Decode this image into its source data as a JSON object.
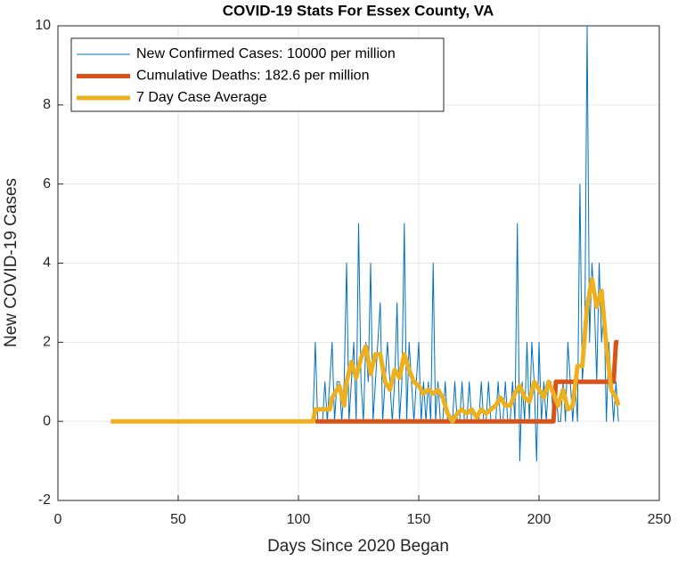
{
  "chart_data": {
    "type": "line",
    "title": "COVID-19 Stats For Essex County, VA",
    "xlabel": "Days Since 2020 Began",
    "ylabel": "New COVID-19 Cases",
    "xlim": [
      0,
      250
    ],
    "xticks": [
      0,
      50,
      100,
      150,
      200,
      250
    ],
    "ylim": [
      -2,
      10
    ],
    "yticks": [
      -2,
      0,
      2,
      4,
      6,
      8,
      10
    ],
    "grid": true,
    "legend": "upper left",
    "series": [
      {
        "name": "New Confirmed Cases: 10000 per million",
        "color": "#0072BD",
        "x": [
          22,
          106,
          107,
          108,
          109,
          110,
          111,
          112,
          113,
          114,
          115,
          116,
          117,
          118,
          119,
          120,
          121,
          122,
          123,
          124,
          125,
          126,
          127,
          128,
          129,
          130,
          131,
          132,
          133,
          134,
          135,
          136,
          137,
          138,
          139,
          140,
          141,
          142,
          143,
          144,
          145,
          146,
          147,
          148,
          149,
          150,
          151,
          152,
          153,
          154,
          155,
          156,
          157,
          158,
          159,
          160,
          161,
          162,
          163,
          164,
          165,
          166,
          167,
          168,
          169,
          170,
          171,
          172,
          173,
          174,
          175,
          176,
          177,
          178,
          179,
          180,
          181,
          182,
          183,
          184,
          185,
          186,
          187,
          188,
          189,
          190,
          191,
          192,
          193,
          194,
          195,
          196,
          197,
          198,
          199,
          200,
          201,
          202,
          203,
          204,
          205,
          206,
          207,
          208,
          209,
          210,
          211,
          212,
          213,
          214,
          215,
          216,
          217,
          218,
          219,
          220,
          221,
          222,
          223,
          224,
          225,
          226,
          227,
          228,
          229,
          230,
          231,
          232,
          233
        ],
        "values": [
          0,
          0,
          2,
          0,
          0,
          0,
          1,
          0,
          1,
          2,
          0,
          1,
          1,
          0,
          1,
          4,
          0,
          1,
          2,
          0,
          5,
          1,
          0,
          2,
          1,
          4,
          0,
          1,
          2,
          3,
          0,
          1,
          2,
          1,
          0,
          1,
          3,
          0,
          1,
          5,
          0,
          2,
          1,
          0,
          1,
          2,
          0,
          1,
          0,
          1,
          0,
          4,
          0,
          1,
          0,
          0,
          1,
          0,
          0,
          0,
          1,
          0,
          0,
          1,
          0,
          0,
          1,
          0,
          0,
          0,
          0,
          1,
          0,
          0,
          1,
          0,
          0,
          0,
          1,
          0,
          0,
          1,
          0,
          0,
          1,
          0,
          5,
          -1,
          1,
          0,
          2,
          0,
          2,
          1,
          -1,
          2,
          0,
          1,
          0,
          1,
          1,
          0,
          1,
          0,
          0,
          1,
          0,
          2,
          1,
          0,
          1,
          0,
          6,
          1,
          2,
          10,
          2,
          4,
          3,
          1,
          4,
          2,
          3,
          0,
          2,
          1,
          0,
          1,
          0
        ]
      },
      {
        "name": "Cumulative Deaths: 182.6 per million",
        "color": "#D95319",
        "x": [
          107,
          206,
          207,
          231,
          232,
          233
        ],
        "values": [
          0,
          0,
          1,
          1,
          2,
          2
        ]
      },
      {
        "name": "7 Day Case Average",
        "color": "#EDB120",
        "x": [
          22,
          106,
          107,
          113,
          114,
          117,
          119,
          120,
          122,
          124,
          126,
          128,
          130,
          132,
          134,
          136,
          138,
          140,
          142,
          144,
          146,
          148,
          150,
          152,
          154,
          156,
          158,
          160,
          162,
          164,
          166,
          168,
          170,
          172,
          174,
          176,
          178,
          180,
          182,
          184,
          186,
          188,
          190,
          192,
          194,
          196,
          198,
          200,
          202,
          204,
          206,
          208,
          210,
          212,
          214,
          216,
          218,
          220,
          222,
          224,
          226,
          228,
          230,
          232,
          233
        ],
        "values": [
          0,
          0,
          0.3,
          0.3,
          0.6,
          0.9,
          0.4,
          1.0,
          1.5,
          1.1,
          1.6,
          1.9,
          1.2,
          1.7,
          1.7,
          1.0,
          0.8,
          1.3,
          1.1,
          1.7,
          1.3,
          1.0,
          0.9,
          0.7,
          0.8,
          0.7,
          0.8,
          0.6,
          0.2,
          0.0,
          0.2,
          0.3,
          0.2,
          0.3,
          0.1,
          0.3,
          0.2,
          0.3,
          0.4,
          0.6,
          0.4,
          0.4,
          0.7,
          0.9,
          0.6,
          0.5,
          1.0,
          0.8,
          0.6,
          1.0,
          0.7,
          0.4,
          0.8,
          0.3,
          0.4,
          1.4,
          1.4,
          2.9,
          3.6,
          2.9,
          3.3,
          1.9,
          0.8,
          0.6,
          0.4
        ]
      }
    ]
  }
}
